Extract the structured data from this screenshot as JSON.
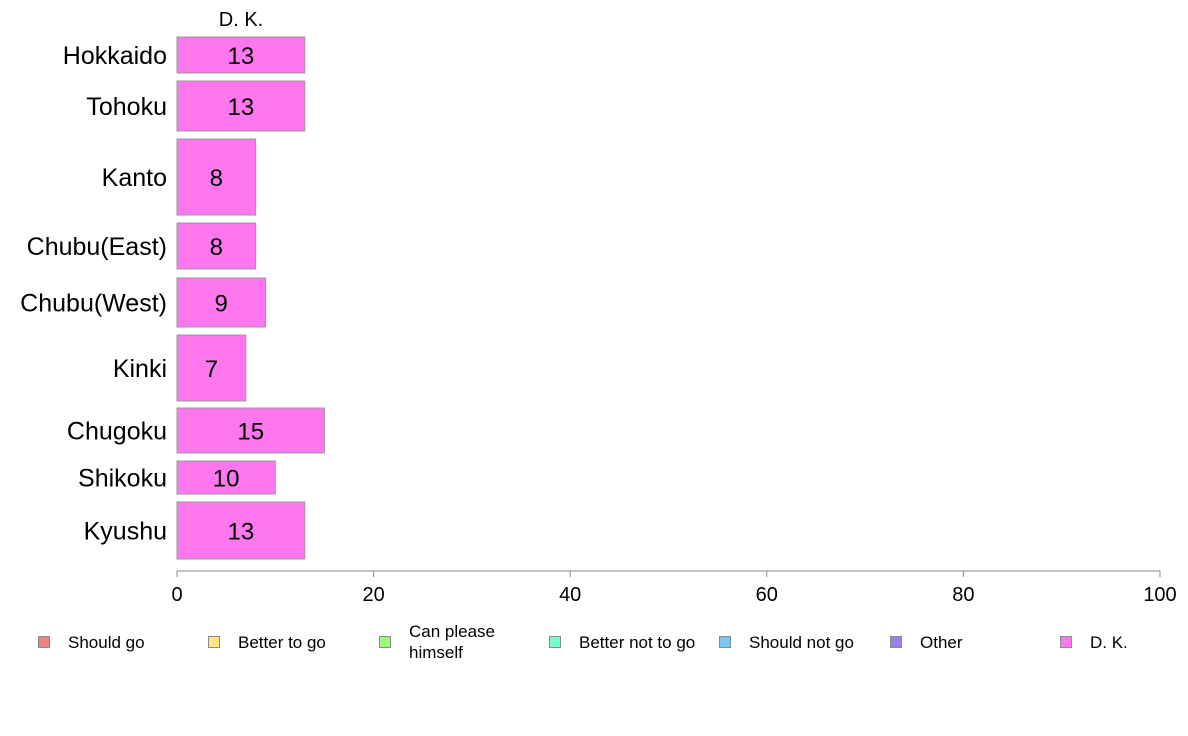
{
  "chart_data": {
    "type": "bar",
    "orientation": "horizontal",
    "series_title": "D. K.",
    "categories": [
      "Hokkaido",
      "Tohoku",
      "Kanto",
      "Chubu(East)",
      "Chubu(West)",
      "Kinki",
      "Chugoku",
      "Shikoku",
      "Kyushu"
    ],
    "series": [
      {
        "name": "D. K.",
        "values": [
          13,
          13,
          8,
          8,
          9,
          7,
          15,
          10,
          13
        ],
        "labels": [
          "13",
          "13",
          "8",
          "8",
          "9",
          "7",
          "15",
          "10",
          "13"
        ],
        "color": "#ff77ee"
      }
    ],
    "xlim": [
      0,
      100
    ],
    "xticks": [
      0,
      20,
      40,
      60,
      80,
      100
    ],
    "xtick_labels": [
      "0",
      "20",
      "40",
      "60",
      "80",
      "100"
    ],
    "grid": false,
    "legend_position": "bottom",
    "legend": [
      {
        "label": "Should go",
        "color": "#f08080"
      },
      {
        "label": "Better to go",
        "color": "#ffe680"
      },
      {
        "label": "Can please himself",
        "color": "#99ff77"
      },
      {
        "label": "Better not to go",
        "color": "#77ffcc"
      },
      {
        "label": "Should not go",
        "color": "#77c8f5"
      },
      {
        "label": "Other",
        "color": "#9a80f0"
      },
      {
        "label": "D. K.",
        "color": "#ff77ee"
      }
    ]
  }
}
